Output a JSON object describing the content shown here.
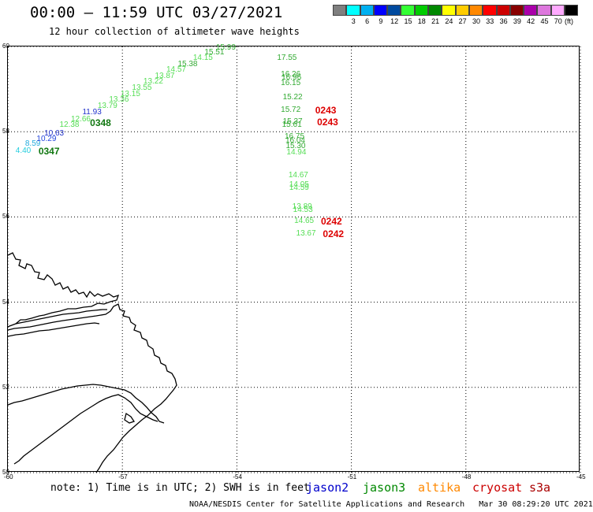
{
  "header": {
    "title": "00:00 – 11:59 UTC 03/27/2021",
    "subtitle": "12 hour collection of altimeter wave heights"
  },
  "colorbar": {
    "unit": "(ft)",
    "items": [
      {
        "label": "",
        "color": "#7f7f7f"
      },
      {
        "label": "3",
        "color": "#00ffff"
      },
      {
        "label": "6",
        "color": "#00b0f0"
      },
      {
        "label": "9",
        "color": "#0000ff"
      },
      {
        "label": "12",
        "color": "#004a9f"
      },
      {
        "label": "15",
        "color": "#33ff33"
      },
      {
        "label": "18",
        "color": "#00cc00"
      },
      {
        "label": "21",
        "color": "#008800"
      },
      {
        "label": "24",
        "color": "#ffff00"
      },
      {
        "label": "27",
        "color": "#ffcc00"
      },
      {
        "label": "30",
        "color": "#ff8800"
      },
      {
        "label": "33",
        "color": "#ff0000"
      },
      {
        "label": "36",
        "color": "#cc0000"
      },
      {
        "label": "39",
        "color": "#880000"
      },
      {
        "label": "42",
        "color": "#aa00aa"
      },
      {
        "label": "45",
        "color": "#dd77dd"
      },
      {
        "label": "70",
        "color": "#ffaaff"
      },
      {
        "label": "",
        "color": "#000000"
      }
    ]
  },
  "map": {
    "lon_range": [
      -60,
      -45
    ],
    "lat_range": [
      50,
      60
    ],
    "lon_ticks": [
      "-60",
      "-57",
      "-54",
      "-51",
      "-48",
      "-45"
    ],
    "lat_ticks": [
      "60",
      "58",
      "56",
      "54",
      "52",
      "50"
    ],
    "grid": "dotted"
  },
  "observations": [
    {
      "v": "4.40",
      "c": "#22ccdd",
      "lon": -59.55,
      "lat": 57.55
    },
    {
      "v": "8.59",
      "c": "#22aadd",
      "lon": -59.3,
      "lat": 57.7
    },
    {
      "v": "10.29",
      "c": "#2244dd",
      "lon": -59.0,
      "lat": 57.82
    },
    {
      "v": "10.63",
      "c": "#2233cc",
      "lon": -58.8,
      "lat": 57.95
    },
    {
      "v": "12.38",
      "c": "#55dd55",
      "lon": -58.4,
      "lat": 58.15
    },
    {
      "v": "12.66",
      "c": "#55dd55",
      "lon": -58.1,
      "lat": 58.28
    },
    {
      "v": "11.93",
      "c": "#2233cc",
      "lon": -57.8,
      "lat": 58.45
    },
    {
      "v": "13.79",
      "c": "#55dd55",
      "lon": -57.4,
      "lat": 58.6
    },
    {
      "v": "13.36",
      "c": "#55dd55",
      "lon": -57.1,
      "lat": 58.74
    },
    {
      "v": "13.15",
      "c": "#55dd55",
      "lon": -56.8,
      "lat": 58.88
    },
    {
      "v": "13.55",
      "c": "#55dd55",
      "lon": -56.5,
      "lat": 59.02
    },
    {
      "v": "13.22",
      "c": "#55dd55",
      "lon": -56.2,
      "lat": 59.16
    },
    {
      "v": "13.87",
      "c": "#55dd55",
      "lon": -55.9,
      "lat": 59.3
    },
    {
      "v": "14.57",
      "c": "#55dd55",
      "lon": -55.6,
      "lat": 59.45
    },
    {
      "v": "15.38",
      "c": "#33aa33",
      "lon": -55.3,
      "lat": 59.58
    },
    {
      "v": "14.15",
      "c": "#55dd55",
      "lon": -54.9,
      "lat": 59.72
    },
    {
      "v": "15.51",
      "c": "#33aa33",
      "lon": -54.6,
      "lat": 59.85
    },
    {
      "v": "15.99",
      "c": "#33aa33",
      "lon": -54.3,
      "lat": 59.96
    },
    {
      "v": "17.55",
      "c": "#33aa33",
      "lon": -52.7,
      "lat": 59.73
    },
    {
      "v": "16.26",
      "c": "#33aa33",
      "lon": -52.6,
      "lat": 59.34
    },
    {
      "v": "16.96",
      "c": "#33aa33",
      "lon": -52.58,
      "lat": 59.26
    },
    {
      "v": "16.15",
      "c": "#33aa33",
      "lon": -52.6,
      "lat": 59.13
    },
    {
      "v": "15.22",
      "c": "#33aa33",
      "lon": -52.55,
      "lat": 58.8
    },
    {
      "v": "15.72",
      "c": "#33aa33",
      "lon": -52.6,
      "lat": 58.5
    },
    {
      "v": "15.37",
      "c": "#33aa33",
      "lon": -52.55,
      "lat": 58.22
    },
    {
      "v": "15.61",
      "c": "#33aa33",
      "lon": -52.57,
      "lat": 58.15
    },
    {
      "v": "16.75",
      "c": "#33aa33",
      "lon": -52.5,
      "lat": 57.87
    },
    {
      "v": "16.04",
      "c": "#33aa33",
      "lon": -52.48,
      "lat": 57.79
    },
    {
      "v": "15.30",
      "c": "#33aa33",
      "lon": -52.47,
      "lat": 57.65
    },
    {
      "v": "14.94",
      "c": "#55dd55",
      "lon": -52.45,
      "lat": 57.5
    },
    {
      "v": "14.67",
      "c": "#55dd55",
      "lon": -52.4,
      "lat": 56.97
    },
    {
      "v": "14.05",
      "c": "#55dd55",
      "lon": -52.38,
      "lat": 56.75
    },
    {
      "v": "14.59",
      "c": "#55dd55",
      "lon": -52.38,
      "lat": 56.68
    },
    {
      "v": "13.89",
      "c": "#55dd55",
      "lon": -52.3,
      "lat": 56.23
    },
    {
      "v": "14.53",
      "c": "#55dd55",
      "lon": -52.28,
      "lat": 56.16
    },
    {
      "v": "14.65",
      "c": "#55dd55",
      "lon": -52.25,
      "lat": 55.9
    },
    {
      "v": "13.67",
      "c": "#55dd55",
      "lon": -52.2,
      "lat": 55.6
    }
  ],
  "times": [
    {
      "t": "0347",
      "c": "#117711",
      "lon": -58.95,
      "lat": 57.55
    },
    {
      "t": "0348",
      "c": "#117711",
      "lon": -57.6,
      "lat": 58.2
    },
    {
      "t": "0243",
      "c": "#dd0000",
      "lon": -51.7,
      "lat": 58.5
    },
    {
      "t": "0243",
      "c": "#dd0000",
      "lon": -51.65,
      "lat": 58.22
    },
    {
      "t": "0242",
      "c": "#dd0000",
      "lon": -51.55,
      "lat": 55.9
    },
    {
      "t": "0242",
      "c": "#dd0000",
      "lon": -51.5,
      "lat": 55.6
    }
  ],
  "footer": {
    "note": "note: 1) Time is in UTC; 2) SWH is in feet",
    "satellites": [
      {
        "name": "jason2",
        "color": "#0000cc"
      },
      {
        "name": "jason3",
        "color": "#008800"
      },
      {
        "name": "altika",
        "color": "#ff8800"
      },
      {
        "name": "cryosat",
        "color": "#cc0000"
      },
      {
        "name": "s3a",
        "color": "#aa0000"
      }
    ],
    "credit": "NOAA/NESDIS Center for Satellite Applications and Research",
    "timestamp": "Mar 30 08:29:20 UTC 2021"
  }
}
